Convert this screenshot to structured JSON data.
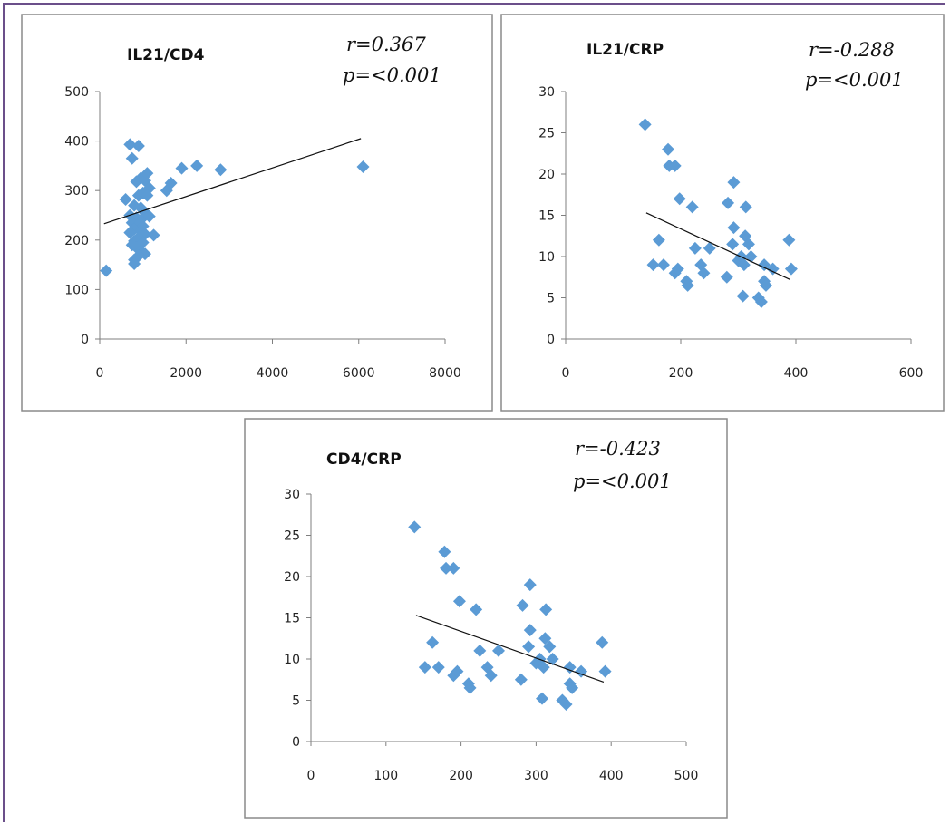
{
  "chart_data": [
    {
      "type": "scatter",
      "title": "IL21/CD4",
      "stat_r": "r=0.367",
      "stat_p": "p=<0.001",
      "xlim": [
        0,
        8000
      ],
      "ylim": [
        0,
        500
      ],
      "xticks": [
        0,
        2000,
        4000,
        6000,
        8000
      ],
      "yticks": [
        0,
        100,
        200,
        300,
        400,
        500
      ],
      "marker_color": "#5b9bd5",
      "trendline": [
        [
          100,
          233
        ],
        [
          6050,
          405
        ]
      ],
      "points": [
        [
          150,
          138
        ],
        [
          600,
          282
        ],
        [
          700,
          393
        ],
        [
          750,
          365
        ],
        [
          900,
          390
        ],
        [
          850,
          318
        ],
        [
          950,
          325
        ],
        [
          1050,
          320
        ],
        [
          1100,
          335
        ],
        [
          1150,
          305
        ],
        [
          1000,
          295
        ],
        [
          900,
          290
        ],
        [
          1100,
          290
        ],
        [
          800,
          270
        ],
        [
          950,
          265
        ],
        [
          1050,
          255
        ],
        [
          700,
          250
        ],
        [
          850,
          245
        ],
        [
          1000,
          245
        ],
        [
          1150,
          248
        ],
        [
          750,
          235
        ],
        [
          900,
          232
        ],
        [
          1000,
          228
        ],
        [
          800,
          222
        ],
        [
          950,
          218
        ],
        [
          700,
          215
        ],
        [
          1050,
          212
        ],
        [
          900,
          205
        ],
        [
          800,
          198
        ],
        [
          1000,
          195
        ],
        [
          750,
          190
        ],
        [
          850,
          185
        ],
        [
          950,
          178
        ],
        [
          1050,
          172
        ],
        [
          900,
          168
        ],
        [
          800,
          160
        ],
        [
          800,
          152
        ],
        [
          1250,
          210
        ],
        [
          1550,
          300
        ],
        [
          1650,
          315
        ],
        [
          1900,
          345
        ],
        [
          2250,
          350
        ],
        [
          2800,
          342
        ],
        [
          6100,
          348
        ]
      ]
    },
    {
      "type": "scatter",
      "title": "IL21/CRP",
      "stat_r": "r=-0.288",
      "stat_p": "p=<0.001",
      "xlim": [
        0,
        600
      ],
      "ylim": [
        0,
        30
      ],
      "xticks": [
        0,
        200,
        400,
        600
      ],
      "yticks": [
        0,
        5,
        10,
        15,
        20,
        25,
        30
      ],
      "marker_color": "#5b9bd5",
      "trendline": [
        [
          140,
          15.3
        ],
        [
          390,
          7.2
        ]
      ],
      "points": [
        [
          138,
          26
        ],
        [
          152,
          9
        ],
        [
          162,
          12
        ],
        [
          170,
          9
        ],
        [
          178,
          23
        ],
        [
          180,
          21
        ],
        [
          190,
          21
        ],
        [
          190,
          8
        ],
        [
          195,
          8.5
        ],
        [
          198,
          17
        ],
        [
          210,
          7
        ],
        [
          212,
          6.5
        ],
        [
          220,
          16
        ],
        [
          225,
          11
        ],
        [
          235,
          9
        ],
        [
          240,
          8
        ],
        [
          250,
          11
        ],
        [
          280,
          7.5
        ],
        [
          282,
          16.5
        ],
        [
          290,
          11.5
        ],
        [
          292,
          13.5
        ],
        [
          292,
          19
        ],
        [
          300,
          9.5
        ],
        [
          305,
          10
        ],
        [
          308,
          5.2
        ],
        [
          310,
          9
        ],
        [
          312,
          12.5
        ],
        [
          313,
          16
        ],
        [
          318,
          11.5
        ],
        [
          322,
          10
        ],
        [
          335,
          5
        ],
        [
          340,
          4.5
        ],
        [
          345,
          9
        ],
        [
          345,
          7
        ],
        [
          348,
          6.5
        ],
        [
          360,
          8.5
        ],
        [
          388,
          12
        ],
        [
          392,
          8.5
        ]
      ]
    },
    {
      "type": "scatter",
      "title": "CD4/CRP",
      "stat_r": "r=-0.423",
      "stat_p": "p=<0.001",
      "xlim": [
        0,
        500
      ],
      "ylim": [
        0,
        30
      ],
      "xticks": [
        0,
        100,
        200,
        300,
        400,
        500
      ],
      "yticks": [
        0,
        5,
        10,
        15,
        20,
        25,
        30
      ],
      "marker_color": "#5b9bd5",
      "trendline": [
        [
          140,
          15.3
        ],
        [
          390,
          7.2
        ]
      ],
      "points": [
        [
          138,
          26
        ],
        [
          152,
          9
        ],
        [
          162,
          12
        ],
        [
          170,
          9
        ],
        [
          178,
          23
        ],
        [
          180,
          21
        ],
        [
          190,
          21
        ],
        [
          190,
          8
        ],
        [
          195,
          8.5
        ],
        [
          198,
          17
        ],
        [
          210,
          7
        ],
        [
          212,
          6.5
        ],
        [
          220,
          16
        ],
        [
          225,
          11
        ],
        [
          235,
          9
        ],
        [
          240,
          8
        ],
        [
          250,
          11
        ],
        [
          280,
          7.5
        ],
        [
          282,
          16.5
        ],
        [
          290,
          11.5
        ],
        [
          292,
          13.5
        ],
        [
          292,
          19
        ],
        [
          300,
          9.5
        ],
        [
          305,
          10
        ],
        [
          308,
          5.2
        ],
        [
          310,
          9
        ],
        [
          312,
          12.5
        ],
        [
          313,
          16
        ],
        [
          318,
          11.5
        ],
        [
          322,
          10
        ],
        [
          335,
          5
        ],
        [
          340,
          4.5
        ],
        [
          345,
          9
        ],
        [
          345,
          7
        ],
        [
          348,
          6.5
        ],
        [
          360,
          8.5
        ],
        [
          388,
          12
        ],
        [
          392,
          8.5
        ]
      ]
    }
  ]
}
